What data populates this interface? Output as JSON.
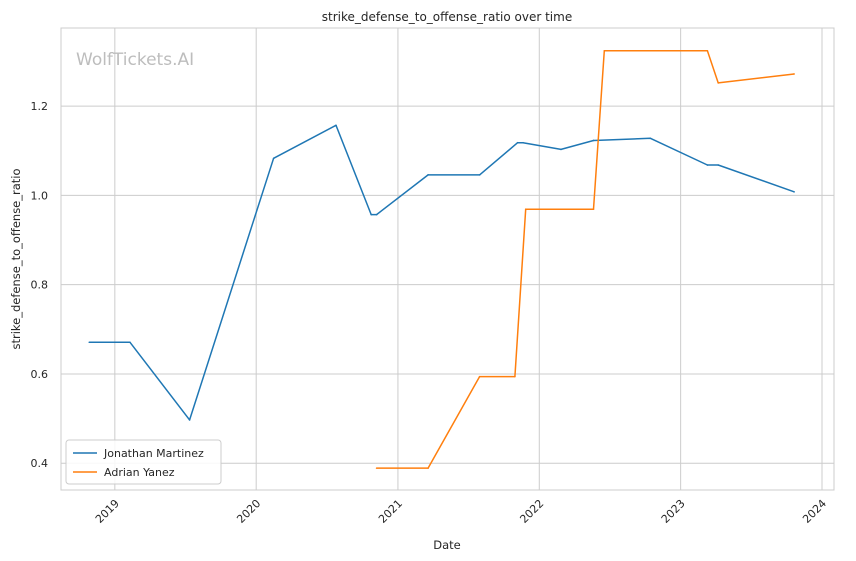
{
  "chart_data": {
    "type": "line",
    "title": "strike_defense_to_offense_ratio over time",
    "xlabel": "Date",
    "ylabel": "strike_defense_to_offense_ratio",
    "watermark": "WolfTickets.AI",
    "x_ticks": [
      "2019",
      "2020",
      "2021",
      "2022",
      "2023",
      "2024"
    ],
    "y_ticks": [
      "0.4",
      "0.6",
      "0.8",
      "1.0",
      "1.2"
    ],
    "xlim": [
      "2018-08-15",
      "2024-02-01"
    ],
    "ylim": [
      0.34,
      1.375
    ],
    "grid": true,
    "legend_position": "lower-left",
    "series": [
      {
        "name": "Jonathan Martinez",
        "color": "#1f77b4",
        "points": [
          [
            "2018-10-27",
            0.671
          ],
          [
            "2019-02-09",
            0.671
          ],
          [
            "2019-07-13",
            0.497
          ],
          [
            "2020-02-15",
            1.083
          ],
          [
            "2020-07-25",
            1.157
          ],
          [
            "2020-10-24",
            0.957
          ],
          [
            "2020-11-07",
            0.957
          ],
          [
            "2021-03-20",
            1.046
          ],
          [
            "2021-07-31",
            1.046
          ],
          [
            "2021-11-06",
            1.118
          ],
          [
            "2021-11-20",
            1.118
          ],
          [
            "2022-02-26",
            1.103
          ],
          [
            "2022-05-21",
            1.123
          ],
          [
            "2022-10-15",
            1.128
          ],
          [
            "2023-03-11",
            1.068
          ],
          [
            "2023-04-08",
            1.068
          ],
          [
            "2023-10-21",
            1.008
          ]
        ]
      },
      {
        "name": "Adrian Yanez",
        "color": "#ff7f0e",
        "points": [
          [
            "2020-11-07",
            0.389
          ],
          [
            "2021-03-20",
            0.389
          ],
          [
            "2021-07-31",
            0.594
          ],
          [
            "2021-10-30",
            0.594
          ],
          [
            "2021-11-27",
            0.969
          ],
          [
            "2022-05-21",
            0.969
          ],
          [
            "2022-06-18",
            1.324
          ],
          [
            "2023-03-11",
            1.324
          ],
          [
            "2023-04-08",
            1.252
          ],
          [
            "2023-10-21",
            1.272
          ]
        ]
      }
    ]
  }
}
